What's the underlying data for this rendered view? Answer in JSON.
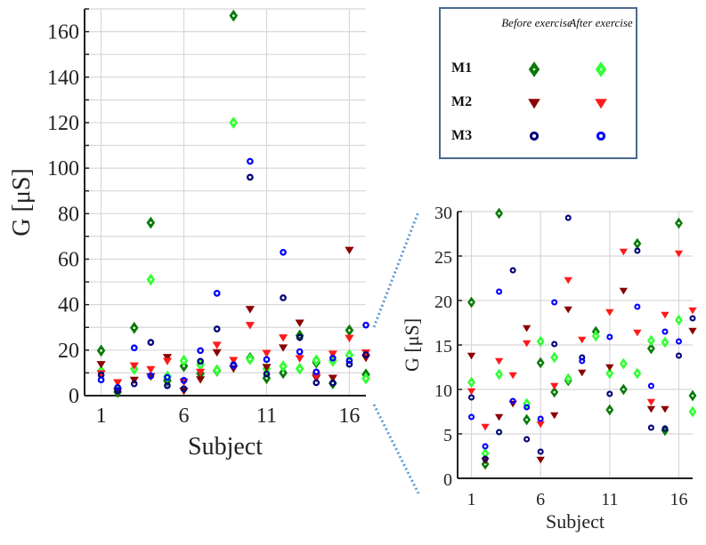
{
  "chart_data": [
    {
      "type": "scatter",
      "xlabel": "Subject",
      "ylabel": "G [μS]",
      "xlim": [
        0,
        17
      ],
      "ylim": [
        0,
        170
      ],
      "xticks": [
        1,
        6,
        11,
        16
      ],
      "yticks": [
        0,
        20,
        40,
        60,
        80,
        100,
        120,
        140,
        160
      ],
      "grid": true,
      "x": [
        1,
        2,
        3,
        4,
        5,
        6,
        7,
        8,
        9,
        10,
        11,
        12,
        13,
        14,
        15,
        16,
        17
      ],
      "series": [
        {
          "name": "M1 Before exercise",
          "marker": "diamond",
          "color": "#0b7a0b",
          "values": [
            19.8,
            1.6,
            29.8,
            76,
            6.6,
            13.0,
            9.7,
            11.0,
            167,
            16.5,
            7.7,
            10.0,
            26.4,
            14.6,
            5.4,
            28.7,
            9.3
          ]
        },
        {
          "name": "M1 After exercise",
          "marker": "diamond",
          "color": "#33ff33",
          "values": [
            10.8,
            2.8,
            11.7,
            51,
            8.4,
            15.4,
            13.6,
            11.2,
            120,
            16.0,
            11.8,
            12.9,
            11.8,
            15.5,
            15.3,
            17.8,
            7.5
          ]
        },
        {
          "name": "M2 Before exercise",
          "marker": "triangle-down",
          "color": "#8b0000",
          "values": [
            13.8,
            2.0,
            6.9,
            8.4,
            16.9,
            2.1,
            7.1,
            19.0,
            11.9,
            38,
            12.5,
            21.1,
            32,
            7.8,
            7.8,
            64,
            16.6
          ]
        },
        {
          "name": "M2 After exercise",
          "marker": "triangle-down",
          "color": "#ff1a1a",
          "values": [
            9.8,
            5.8,
            13.2,
            11.6,
            15.2,
            6.1,
            10.4,
            22.3,
            15.6,
            31,
            18.7,
            25.5,
            16.4,
            8.6,
            18.4,
            25.3,
            18.9
          ]
        },
        {
          "name": "M3 Before exercise",
          "marker": "circle",
          "color": "#00007a",
          "values": [
            9.1,
            2.2,
            5.2,
            23.4,
            4.4,
            3.0,
            15.1,
            29.3,
            13.6,
            96,
            9.5,
            43,
            25.6,
            5.7,
            5.6,
            13.8,
            18.0
          ]
        },
        {
          "name": "M3 After exercise",
          "marker": "circle",
          "color": "#0000ff",
          "values": [
            6.9,
            3.6,
            21.0,
            8.7,
            8.0,
            6.7,
            19.8,
            45,
            13.2,
            103,
            15.9,
            63,
            19.3,
            10.4,
            16.5,
            15.4,
            31
          ]
        }
      ]
    },
    {
      "type": "scatter",
      "xlabel": "Subject",
      "ylabel": "G [μS]",
      "xlim": [
        0,
        17
      ],
      "ylim": [
        0,
        30
      ],
      "xticks": [
        1,
        6,
        11,
        16
      ],
      "yticks": [
        0,
        5,
        10,
        15,
        20,
        25,
        30
      ],
      "grid": true,
      "note_ref": "zoomed view of the same data"
    }
  ],
  "legend": {
    "col_before": "Before exercise",
    "col_after": "After exercise",
    "rows": [
      "M1",
      "M2",
      "M3"
    ]
  }
}
